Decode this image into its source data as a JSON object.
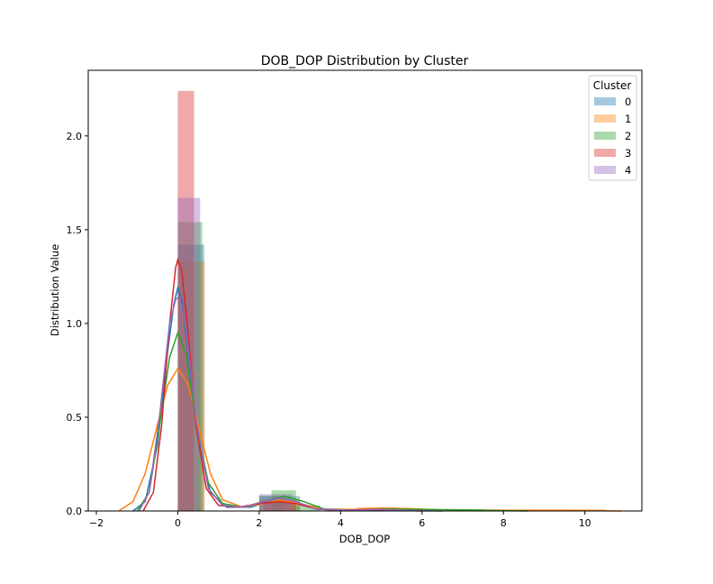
{
  "chart_data": {
    "type": "histogram with kde",
    "title": "DOB_DOP Distribution by Cluster",
    "xlabel": "DOB_DOP",
    "ylabel": "Distribution Value",
    "xlim": [
      -2.2,
      11.4
    ],
    "ylim": [
      0,
      2.35
    ],
    "xticks": [
      -2,
      0,
      2,
      4,
      6,
      8,
      10
    ],
    "yticks": [
      0.0,
      0.5,
      1.0,
      1.5,
      2.0
    ],
    "grid": false,
    "legend": {
      "title": "Cluster",
      "placement": "top-right"
    },
    "series": [
      {
        "name": "0",
        "color": "#1f77b4",
        "bars": [
          [
            0.0,
            0.65,
            1.42
          ],
          [
            2.0,
            3.0,
            0.08
          ],
          [
            4.0,
            5.5,
            0.01
          ]
        ],
        "kde": [
          [
            -1.1,
            0
          ],
          [
            -0.8,
            0.05
          ],
          [
            -0.5,
            0.35
          ],
          [
            -0.25,
            0.85
          ],
          [
            -0.1,
            1.1
          ],
          [
            0.0,
            1.19
          ],
          [
            0.1,
            1.12
          ],
          [
            0.25,
            0.85
          ],
          [
            0.5,
            0.38
          ],
          [
            0.8,
            0.1
          ],
          [
            1.2,
            0.02
          ],
          [
            1.8,
            0.02
          ],
          [
            2.2,
            0.05
          ],
          [
            2.5,
            0.07
          ],
          [
            2.9,
            0.05
          ],
          [
            3.4,
            0.01
          ],
          [
            4.0,
            0.004
          ],
          [
            5.0,
            0.006
          ],
          [
            6.0,
            0.002
          ],
          [
            6.5,
            0
          ]
        ]
      },
      {
        "name": "1",
        "color": "#ff7f0e",
        "bars": [
          [
            0.0,
            0.66,
            1.33
          ],
          [
            2.0,
            3.0,
            0.06
          ],
          [
            4.4,
            5.4,
            0.02
          ],
          [
            5.4,
            10.5,
            0.01
          ]
        ],
        "kde": [
          [
            -1.45,
            0
          ],
          [
            -1.1,
            0.05
          ],
          [
            -0.8,
            0.2
          ],
          [
            -0.5,
            0.46
          ],
          [
            -0.25,
            0.67
          ],
          [
            0.0,
            0.76
          ],
          [
            0.25,
            0.68
          ],
          [
            0.5,
            0.46
          ],
          [
            0.8,
            0.2
          ],
          [
            1.1,
            0.06
          ],
          [
            1.6,
            0.02
          ],
          [
            2.1,
            0.04
          ],
          [
            2.5,
            0.06
          ],
          [
            3.0,
            0.04
          ],
          [
            3.6,
            0.01
          ],
          [
            4.3,
            0.008
          ],
          [
            5.0,
            0.016
          ],
          [
            5.6,
            0.013
          ],
          [
            6.5,
            0.006
          ],
          [
            8.0,
            0.003
          ],
          [
            9.5,
            0.003
          ],
          [
            10.5,
            0.001
          ],
          [
            10.9,
            0
          ]
        ]
      },
      {
        "name": "2",
        "color": "#2ca02c",
        "bars": [
          [
            0.0,
            0.6,
            1.54
          ],
          [
            2.0,
            2.6,
            0.08
          ],
          [
            2.3,
            2.9,
            0.11
          ],
          [
            2.9,
            3.5,
            0.03
          ],
          [
            4.5,
            7.5,
            0.01
          ]
        ],
        "kde": [
          [
            -1.0,
            0
          ],
          [
            -0.7,
            0.1
          ],
          [
            -0.45,
            0.45
          ],
          [
            -0.2,
            0.82
          ],
          [
            0.0,
            0.95
          ],
          [
            0.2,
            0.84
          ],
          [
            0.45,
            0.47
          ],
          [
            0.75,
            0.15
          ],
          [
            1.1,
            0.04
          ],
          [
            1.6,
            0.02
          ],
          [
            2.1,
            0.05
          ],
          [
            2.6,
            0.08
          ],
          [
            3.1,
            0.05
          ],
          [
            3.6,
            0.01
          ],
          [
            4.3,
            0.004
          ],
          [
            5.0,
            0.01
          ],
          [
            6.0,
            0.008
          ],
          [
            7.0,
            0.006
          ],
          [
            8.0,
            0.002
          ],
          [
            8.6,
            0
          ]
        ]
      },
      {
        "name": "3",
        "color": "#d62728",
        "bars": [
          [
            0.0,
            0.4,
            2.24
          ],
          [
            2.1,
            2.9,
            0.05
          ],
          [
            4.4,
            5.4,
            0.01
          ]
        ],
        "kde": [
          [
            -0.85,
            0
          ],
          [
            -0.6,
            0.1
          ],
          [
            -0.4,
            0.45
          ],
          [
            -0.2,
            1.0
          ],
          [
            -0.05,
            1.3
          ],
          [
            0.0,
            1.34
          ],
          [
            0.1,
            1.28
          ],
          [
            0.25,
            0.95
          ],
          [
            0.45,
            0.45
          ],
          [
            0.7,
            0.12
          ],
          [
            1.0,
            0.03
          ],
          [
            1.5,
            0.02
          ],
          [
            2.0,
            0.04
          ],
          [
            2.5,
            0.05
          ],
          [
            2.9,
            0.04
          ],
          [
            3.4,
            0.01
          ],
          [
            4.0,
            0.004
          ],
          [
            4.7,
            0.008
          ],
          [
            5.4,
            0.004
          ],
          [
            6.0,
            0
          ]
        ]
      },
      {
        "name": "4",
        "color": "#9467bd",
        "bars": [
          [
            0.0,
            0.55,
            1.67
          ],
          [
            2.0,
            2.8,
            0.09
          ],
          [
            4.6,
            5.2,
            0.01
          ]
        ],
        "kde": [
          [
            -0.95,
            0
          ],
          [
            -0.7,
            0.1
          ],
          [
            -0.45,
            0.5
          ],
          [
            -0.2,
            1.0
          ],
          [
            -0.05,
            1.13
          ],
          [
            0.05,
            1.14
          ],
          [
            0.2,
            0.98
          ],
          [
            0.45,
            0.48
          ],
          [
            0.75,
            0.12
          ],
          [
            1.1,
            0.03
          ],
          [
            1.6,
            0.02
          ],
          [
            2.1,
            0.05
          ],
          [
            2.5,
            0.07
          ],
          [
            2.9,
            0.05
          ],
          [
            3.4,
            0.01
          ],
          [
            4.2,
            0.004
          ],
          [
            4.9,
            0.008
          ],
          [
            5.6,
            0.003
          ],
          [
            6.2,
            0
          ]
        ]
      }
    ]
  }
}
